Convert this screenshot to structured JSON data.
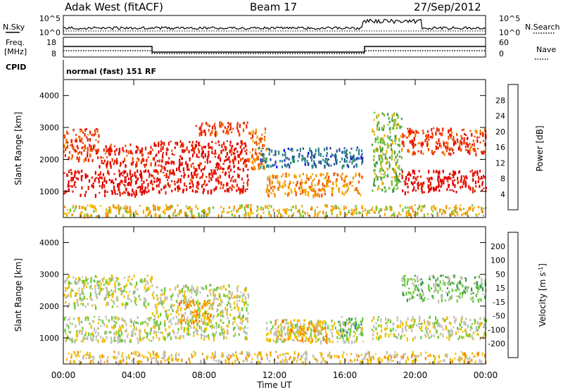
{
  "header": {
    "station": "Adak West (fitACF)",
    "beam": "Beam 17",
    "date": "27/Sep/2012"
  },
  "aux_panels": {
    "nsky_label": "N.Sky",
    "nsearch_label": "N.Search",
    "nsky_ticks": [
      "10^5",
      "10^0"
    ],
    "nsearch_ticks": [
      "10^5",
      "10^0"
    ],
    "freq_label_1": "Freq.",
    "freq_label_2": "[MHz]",
    "freq_ticks": [
      "18",
      "8"
    ],
    "nave_label": "Nave",
    "nave_ticks": [
      "60",
      "0"
    ],
    "cpid_label": "CPID",
    "cpid_text": "normal (fast) 151 RF"
  },
  "colors": {
    "power": [
      "#0000ff",
      "#1d4f9a",
      "#2e8a8a",
      "#3a9a4a",
      "#7ac23a",
      "#f0b000",
      "#f58a00",
      "#f25000",
      "#e81e00",
      "#e00000"
    ],
    "velocity": [
      "#1a3ca8",
      "#2f7ab0",
      "#2f9a4a",
      "#6ac83a",
      "#bebeb6",
      "#f0c000",
      "#f59000",
      "#f06000",
      "#e82800",
      "#e00000"
    ]
  },
  "chart_data": [
    {
      "type": "heatmap",
      "title": "Power",
      "ylabel": "Slant Range [km]",
      "colorbar_label": "Power [dB]",
      "ylim": [
        180,
        4500
      ],
      "yticks": [
        1000,
        2000,
        3000,
        4000
      ],
      "colorbar_ticks": [
        "4",
        "8",
        "12",
        "16",
        "20",
        "24",
        "28"
      ],
      "colorbar_range": [
        0,
        32
      ],
      "regions": [
        {
          "t": [
            0.0,
            5.0
          ],
          "r": [
            900,
            1700
          ],
          "level": 0.95
        },
        {
          "t": [
            0.0,
            2.0
          ],
          "r": [
            2000,
            3000
          ],
          "level": 0.8
        },
        {
          "t": [
            2.0,
            5.0
          ],
          "r": [
            1800,
            2500
          ],
          "level": 0.85
        },
        {
          "t": [
            5.0,
            10.5
          ],
          "r": [
            1000,
            2600
          ],
          "level": 0.9
        },
        {
          "t": [
            7.5,
            10.5
          ],
          "r": [
            2800,
            3200
          ],
          "level": 0.8
        },
        {
          "t": [
            10.5,
            11.5
          ],
          "r": [
            1700,
            3000
          ],
          "level": 0.7
        },
        {
          "t": [
            11.5,
            17.0
          ],
          "r": [
            900,
            1600
          ],
          "level": 0.65
        },
        {
          "t": [
            11.0,
            17.0
          ],
          "r": [
            1800,
            2400
          ],
          "level": 0.2
        },
        {
          "t": [
            17.5,
            19.2
          ],
          "r": [
            1000,
            3500
          ],
          "level": 0.45
        },
        {
          "t": [
            19.2,
            24.0
          ],
          "r": [
            1000,
            1700
          ],
          "level": 0.95
        },
        {
          "t": [
            19.2,
            24.0
          ],
          "r": [
            2200,
            3000
          ],
          "level": 0.8
        },
        {
          "t": [
            0.0,
            24.0
          ],
          "r": [
            250,
            600
          ],
          "level": 0.55
        }
      ]
    },
    {
      "type": "heatmap",
      "title": "Velocity",
      "ylabel": "Slant Range [km]",
      "colorbar_label": "Velocity [m s^-1]",
      "ylim": [
        180,
        4500
      ],
      "yticks": [
        1000,
        2000,
        3000,
        4000
      ],
      "xlabel": "Time UT",
      "xticks": [
        "00:00",
        "04:00",
        "08:00",
        "12:00",
        "16:00",
        "20:00",
        "00:00"
      ],
      "colorbar_ticks": [
        "200",
        "100",
        "50",
        "15",
        "-15",
        "-50",
        "-100",
        "-200"
      ],
      "regions": [
        {
          "t": [
            0.0,
            5.0
          ],
          "r": [
            900,
            1700
          ],
          "level": 0.45
        },
        {
          "t": [
            0.0,
            5.0
          ],
          "r": [
            2000,
            3000
          ],
          "level": 0.45
        },
        {
          "t": [
            5.0,
            10.5
          ],
          "r": [
            1000,
            2700
          ],
          "level": 0.45
        },
        {
          "t": [
            6.5,
            8.5
          ],
          "r": [
            1500,
            2200
          ],
          "level": 0.6
        },
        {
          "t": [
            11.5,
            17.0
          ],
          "r": [
            900,
            1600
          ],
          "level": 0.45
        },
        {
          "t": [
            12.0,
            15.0
          ],
          "r": [
            900,
            1600
          ],
          "level": 0.6
        },
        {
          "t": [
            15.5,
            17.0
          ],
          "r": [
            1100,
            1700
          ],
          "level": 0.3
        },
        {
          "t": [
            17.5,
            24.0
          ],
          "r": [
            1000,
            1700
          ],
          "level": 0.45
        },
        {
          "t": [
            19.2,
            24.0
          ],
          "r": [
            2200,
            3000
          ],
          "level": 0.35
        },
        {
          "t": [
            0.0,
            24.0
          ],
          "r": [
            250,
            600
          ],
          "level": 0.55
        }
      ]
    }
  ]
}
